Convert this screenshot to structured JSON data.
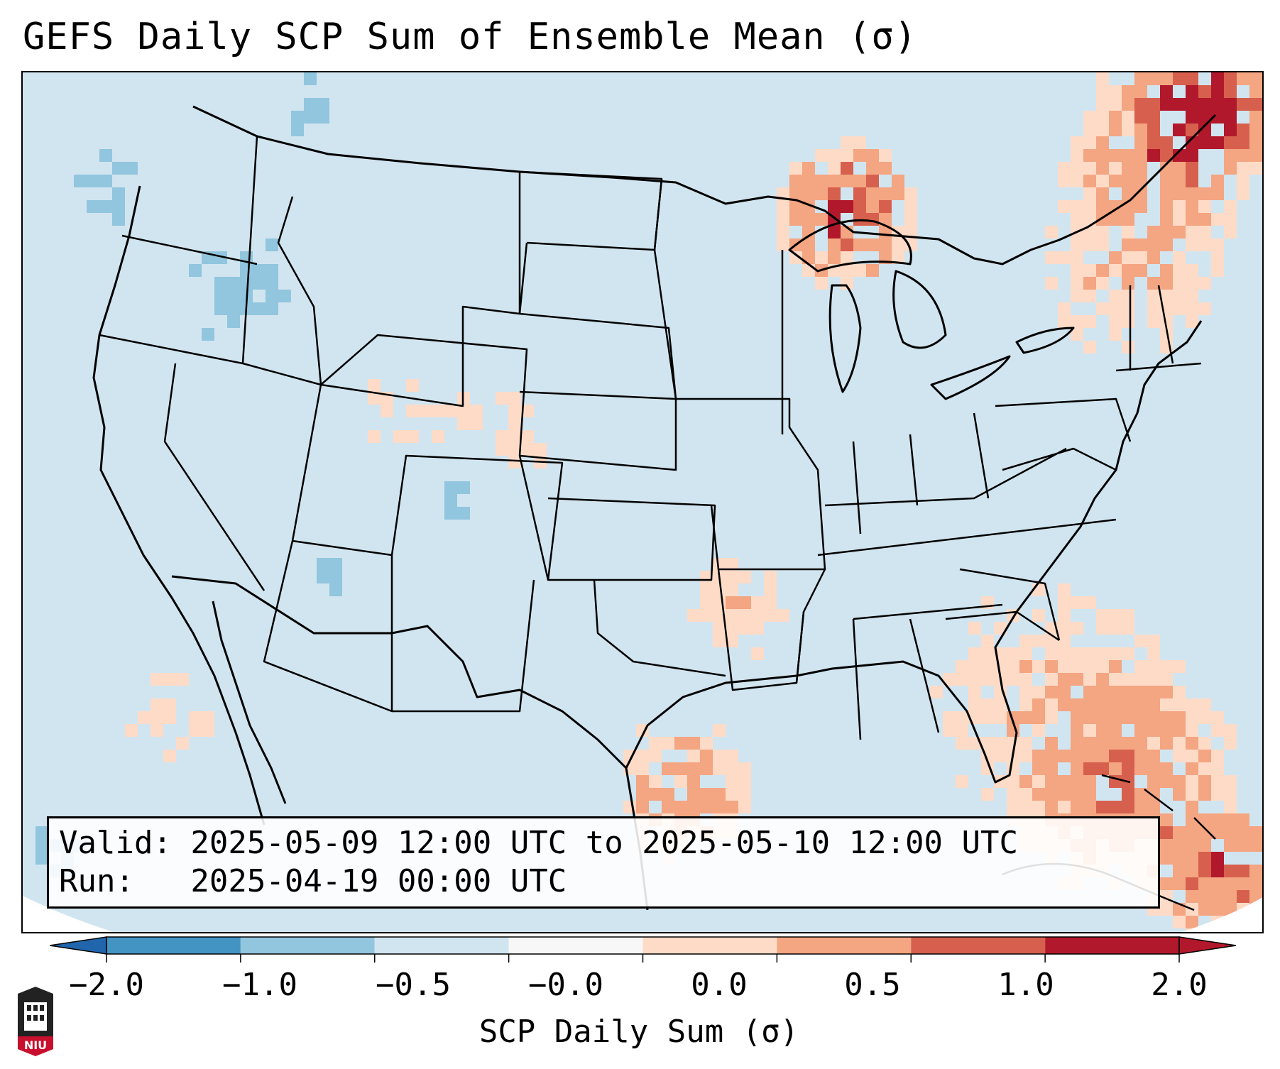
{
  "title": "GEFS Daily SCP Sum of Ensemble Mean (σ)",
  "info": {
    "valid": "Valid: 2025-05-09 12:00 UTC to 2025-05-10 12:00 UTC",
    "run": "Run:   2025-04-19 00:00 UTC"
  },
  "colorbar": {
    "label": "SCP Daily Sum (σ)",
    "ticks": [
      "−2.0",
      "−1.0",
      "−0.5",
      "−0.0",
      "0.0",
      "0.5",
      "1.0",
      "2.0"
    ],
    "colors": [
      "#4393c3",
      "#92c5de",
      "#d1e5f0",
      "#f7f7f7",
      "#fddbc7",
      "#f4a582",
      "#d6604d",
      "#b2182b"
    ],
    "under_color": "#2166ac",
    "over_color": "#b2182b"
  },
  "map": {
    "background_color": "#d1e5f0",
    "outside_color": "#ffffff",
    "region": "Contiguous United States and adjacent waters"
  },
  "logo": {
    "text": "NIU"
  },
  "icons": {
    "logo": "university-shield-icon"
  }
}
